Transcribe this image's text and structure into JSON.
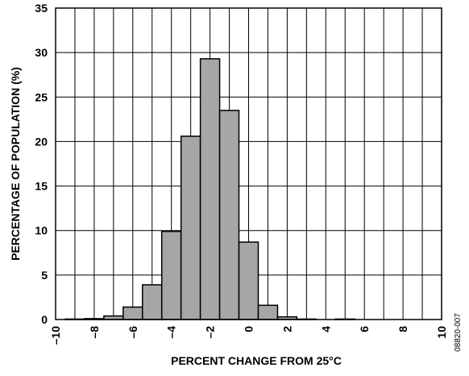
{
  "chart_data": {
    "type": "bar",
    "xlabel": "PERCENT CHANGE FROM 25°C",
    "ylabel": "PERCENTAGE OF POPULATION (%)",
    "xlim": [
      -10,
      10
    ],
    "ylim": [
      0,
      35
    ],
    "x_ticks": [
      -10,
      -8,
      -6,
      -4,
      -2,
      0,
      2,
      4,
      6,
      8,
      10
    ],
    "x_tick_labels": [
      "–10",
      "–8",
      "–6",
      "–4",
      "–2",
      "0",
      "2",
      "4",
      "6",
      "8",
      "10"
    ],
    "y_ticks": [
      0,
      5,
      10,
      15,
      20,
      25,
      30,
      35
    ],
    "y_tick_labels": [
      "0",
      "5",
      "10",
      "15",
      "20",
      "25",
      "30",
      "35"
    ],
    "bin_width": 1,
    "bins": [
      {
        "center": -9,
        "value": 0.05
      },
      {
        "center": -8,
        "value": 0.1
      },
      {
        "center": -7,
        "value": 0.4
      },
      {
        "center": -6,
        "value": 1.4
      },
      {
        "center": -5,
        "value": 3.9
      },
      {
        "center": -4,
        "value": 9.9
      },
      {
        "center": -3,
        "value": 20.6
      },
      {
        "center": -2,
        "value": 29.3
      },
      {
        "center": -1,
        "value": 23.5
      },
      {
        "center": 0,
        "value": 8.7
      },
      {
        "center": 1,
        "value": 1.6
      },
      {
        "center": 2,
        "value": 0.3
      },
      {
        "center": 3,
        "value": 0.05
      },
      {
        "center": 4,
        "value": 0
      },
      {
        "center": 5,
        "value": 0.05
      }
    ],
    "bar_color": "#a6a6a6",
    "grid": true,
    "figure_id": "08820-007"
  }
}
